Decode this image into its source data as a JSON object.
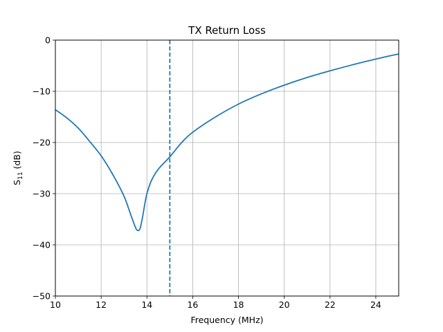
{
  "chart_data": {
    "type": "line",
    "title": "TX Return Loss",
    "xlabel": "Frequency (MHz)",
    "ylabel_base": "S",
    "ylabel_sub": "11",
    "ylabel_suffix": " (dB)",
    "xlim": [
      10,
      25
    ],
    "ylim": [
      -50,
      0
    ],
    "xticks": [
      10,
      12,
      14,
      16,
      18,
      20,
      22,
      24
    ],
    "yticks": [
      0,
      -10,
      -20,
      -30,
      -40,
      -50
    ],
    "xtick_labels": [
      "10",
      "12",
      "14",
      "16",
      "18",
      "20",
      "22",
      "24"
    ],
    "ytick_labels": [
      "0",
      "−10",
      "−20",
      "−30",
      "−40",
      "−50"
    ],
    "grid": true,
    "series": [
      {
        "color": "#1f77b4",
        "x": [
          10.0,
          10.5,
          11.0,
          11.5,
          12.0,
          12.5,
          13.0,
          13.3,
          13.5,
          13.6,
          13.7,
          13.8,
          13.9,
          14.0,
          14.2,
          14.5,
          15.0,
          15.5,
          16.0,
          17.0,
          18.0,
          19.0,
          20.0,
          21.0,
          22.0,
          23.0,
          24.0,
          25.0
        ],
        "y": [
          -13.6,
          -15.2,
          -17.2,
          -19.8,
          -22.6,
          -26.2,
          -30.5,
          -34.2,
          -36.6,
          -37.2,
          -36.8,
          -34.8,
          -32.2,
          -30.0,
          -27.4,
          -25.2,
          -22.8,
          -20.1,
          -18.0,
          -15.0,
          -12.5,
          -10.5,
          -8.8,
          -7.3,
          -6.0,
          -4.8,
          -3.7,
          -2.7
        ]
      }
    ],
    "annotations": [
      {
        "type": "vline",
        "x": 15,
        "style": "dashed",
        "color": "#1f77b4"
      }
    ]
  }
}
